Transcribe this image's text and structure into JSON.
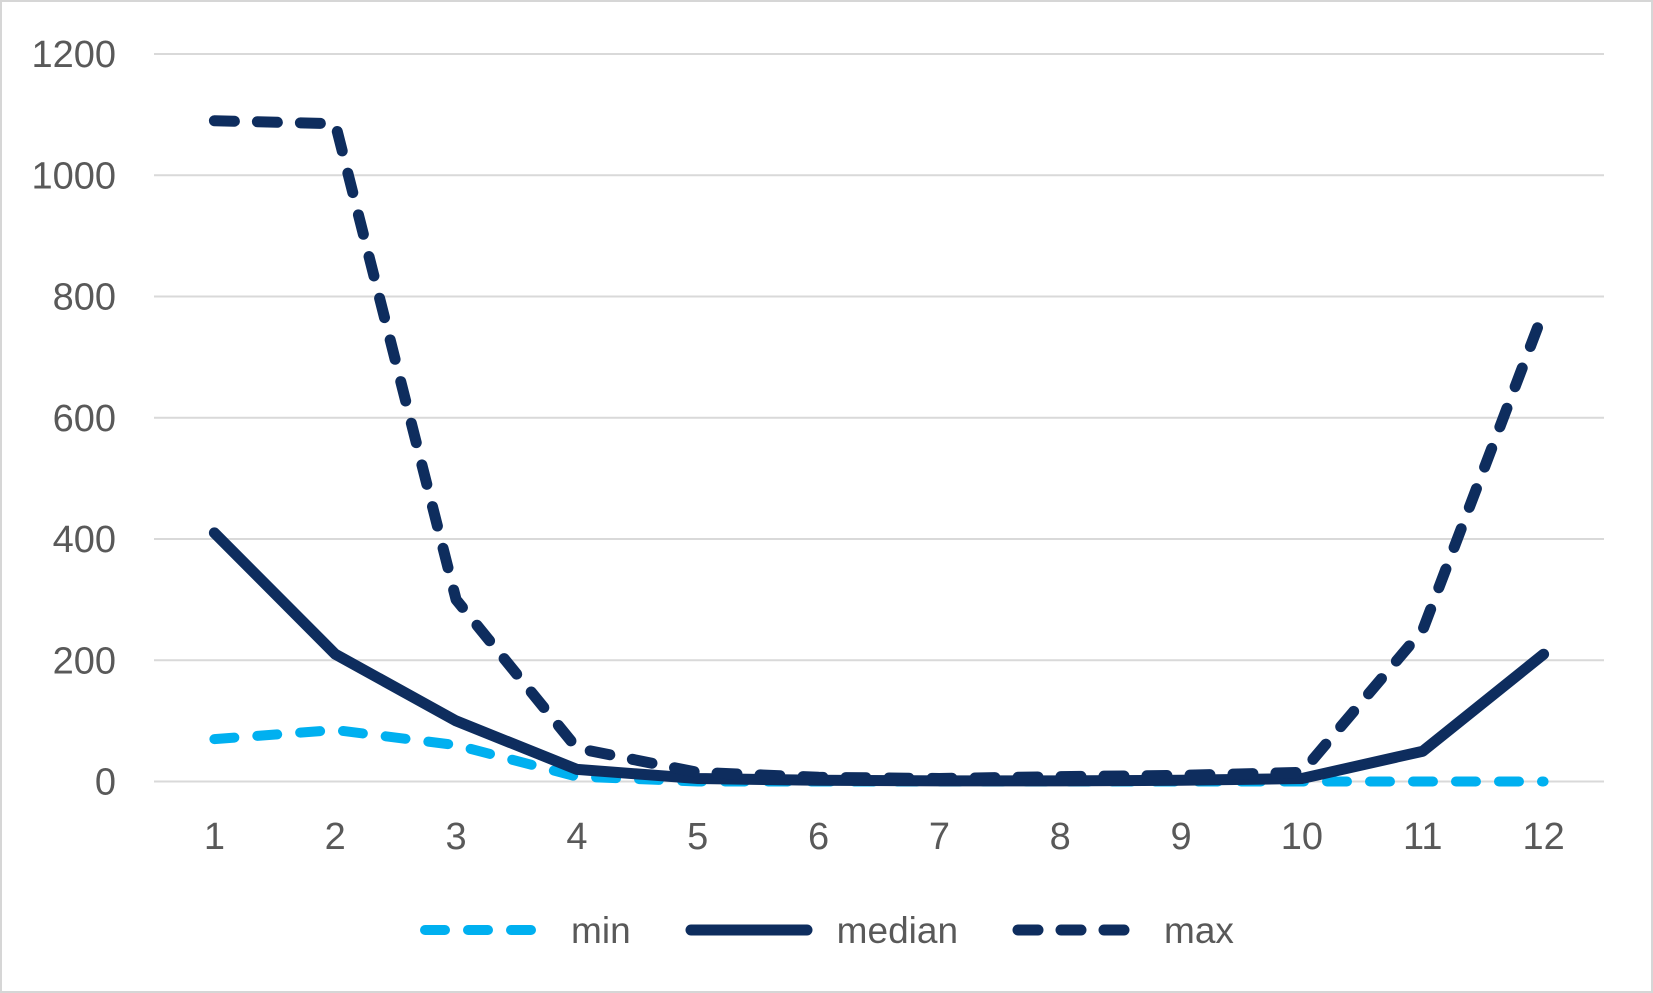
{
  "frame": {
    "background": "#ffffff",
    "border_color": "#d6d6d6"
  },
  "chart_data": {
    "type": "line",
    "title": "",
    "xlabel": "",
    "ylabel": "",
    "categories": [
      "1",
      "2",
      "3",
      "4",
      "5",
      "6",
      "7",
      "8",
      "9",
      "10",
      "11",
      "12"
    ],
    "series": [
      {
        "name": "min",
        "color": "#00b0f0",
        "style": "dashed",
        "values": [
          70,
          85,
          60,
          8,
          0,
          0,
          0,
          0,
          0,
          0,
          0,
          0
        ]
      },
      {
        "name": "median",
        "color": "#0e2d5e",
        "style": "solid",
        "values": [
          410,
          210,
          100,
          20,
          5,
          2,
          1,
          1,
          2,
          5,
          50,
          210
        ]
      },
      {
        "name": "max",
        "color": "#0e2d5e",
        "style": "dashed",
        "values": [
          1090,
          1085,
          300,
          55,
          15,
          7,
          5,
          8,
          10,
          15,
          250,
          775
        ]
      }
    ],
    "ylim": [
      0,
      1200
    ],
    "yticks": [
      0,
      200,
      400,
      600,
      800,
      1000,
      1200
    ],
    "grid": "horizontal-only",
    "gridline_color": "#d9d9d9",
    "tick_label_color": "#595959",
    "legend_position": "bottom",
    "legend_order": [
      "min",
      "median",
      "max"
    ]
  }
}
